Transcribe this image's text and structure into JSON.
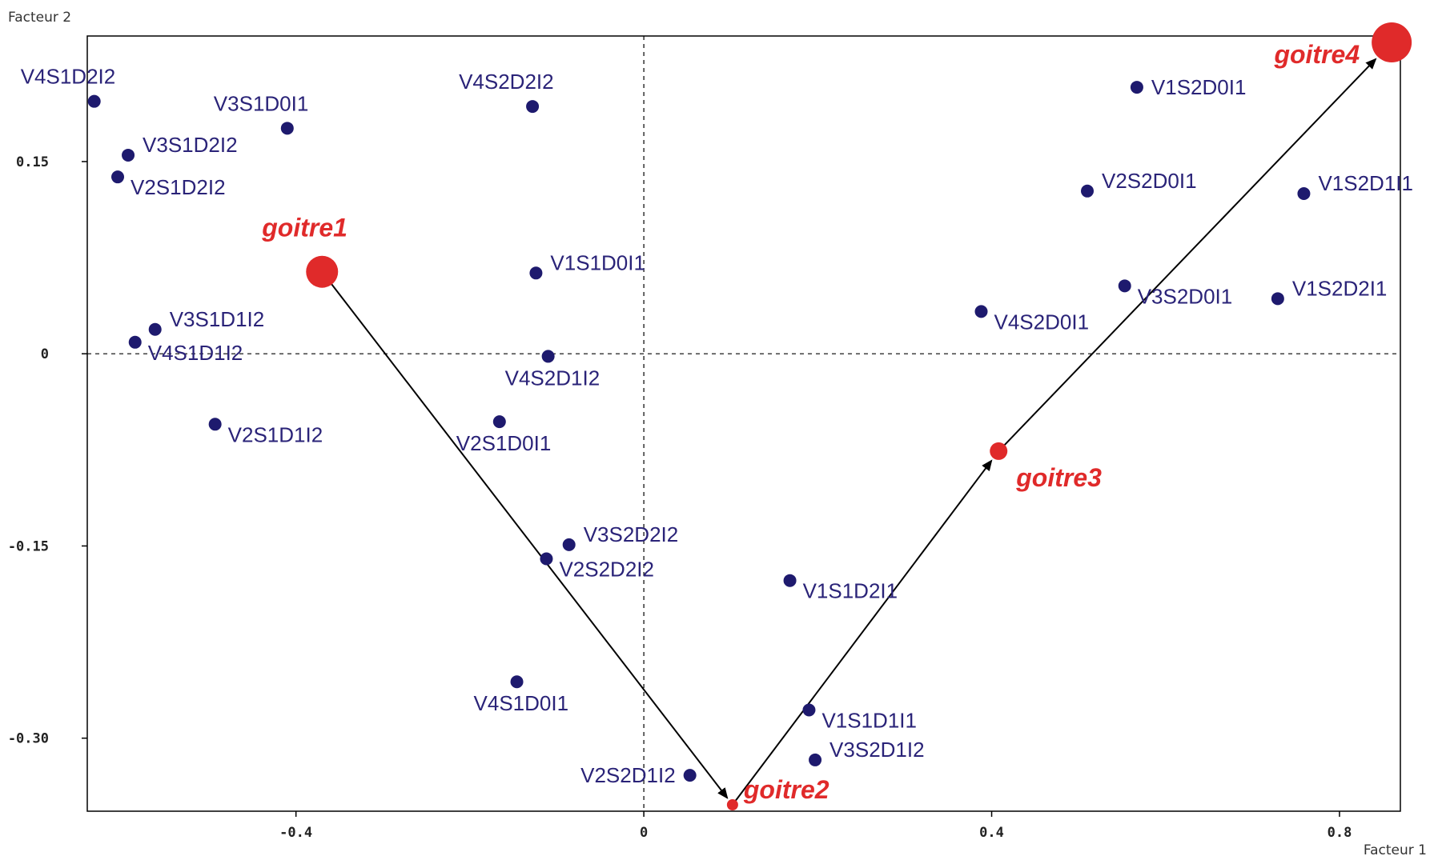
{
  "chart_data": {
    "type": "scatter",
    "xlabel": "Facteur 1",
    "ylabel": "Facteur 2",
    "xlim": [
      -0.64,
      0.87
    ],
    "ylim": [
      -0.357,
      0.248
    ],
    "xticks": [
      {
        "value": -0.4,
        "label": "-0.4"
      },
      {
        "value": 0,
        "label": "0"
      },
      {
        "value": 0.4,
        "label": "0.4"
      },
      {
        "value": 0.8,
        "label": "0.8"
      }
    ],
    "yticks": [
      {
        "value": 0.15,
        "label": "0.15"
      },
      {
        "value": 0,
        "label": "0"
      },
      {
        "value": -0.15,
        "label": "-0.15"
      },
      {
        "value": -0.3,
        "label": "-0.30"
      }
    ],
    "zero_lines": true,
    "colors": {
      "points": "#1e1a6e",
      "labels": "#2a2378",
      "supplementary": "#e02a2a",
      "arrows": "#000000"
    },
    "series": [
      {
        "points": [
          {
            "label": "V4S1D2I2",
            "x": -0.632,
            "y": 0.197,
            "anchor": "above-left"
          },
          {
            "label": "V3S1D0I1",
            "x": -0.41,
            "y": 0.176,
            "anchor": "above-left"
          },
          {
            "label": "V4S2D2I2",
            "x": -0.128,
            "y": 0.193,
            "anchor": "above-left"
          },
          {
            "label": "V3S1D2I2",
            "x": -0.593,
            "y": 0.155,
            "anchor": "right-above"
          },
          {
            "label": "V2S1D2I2",
            "x": -0.605,
            "y": 0.138,
            "anchor": "right-below"
          },
          {
            "label": "V1S1D0I1",
            "x": -0.124,
            "y": 0.063,
            "anchor": "right-above"
          },
          {
            "label": "V3S1D1I2",
            "x": -0.562,
            "y": 0.019,
            "anchor": "right-above"
          },
          {
            "label": "V4S1D1I2",
            "x": -0.585,
            "y": 0.009,
            "anchor": "right-below"
          },
          {
            "label": "V4S2D1I2",
            "x": -0.11,
            "y": -0.002,
            "anchor": "below-left"
          },
          {
            "label": "V2S1D1I2",
            "x": -0.493,
            "y": -0.055,
            "anchor": "right-below"
          },
          {
            "label": "V2S1D0I1",
            "x": -0.166,
            "y": -0.053,
            "anchor": "below-left"
          },
          {
            "label": "V3S2D2I2",
            "x": -0.086,
            "y": -0.149,
            "anchor": "right-above"
          },
          {
            "label": "V2S2D2I2",
            "x": -0.112,
            "y": -0.16,
            "anchor": "right-below"
          },
          {
            "label": "V1S1D2I1",
            "x": 0.168,
            "y": -0.177,
            "anchor": "right-below"
          },
          {
            "label": "V4S1D0I1",
            "x": -0.146,
            "y": -0.256,
            "anchor": "below-left"
          },
          {
            "label": "V1S1D1I1",
            "x": 0.19,
            "y": -0.278,
            "anchor": "right-below"
          },
          {
            "label": "V3S2D1I2",
            "x": 0.197,
            "y": -0.317,
            "anchor": "right-above"
          },
          {
            "label": "V2S2D1I2",
            "x": 0.053,
            "y": -0.329,
            "anchor": "left"
          },
          {
            "label": "V1S2D0I1",
            "x": 0.567,
            "y": 0.208,
            "anchor": "right"
          },
          {
            "label": "V2S2D0I1",
            "x": 0.51,
            "y": 0.127,
            "anchor": "right-above"
          },
          {
            "label": "V1S2D1I1",
            "x": 0.759,
            "y": 0.125,
            "anchor": "right-above"
          },
          {
            "label": "V3S2D0I1",
            "x": 0.553,
            "y": 0.053,
            "anchor": "right-below"
          },
          {
            "label": "V1S2D2I1",
            "x": 0.729,
            "y": 0.043,
            "anchor": "right-above"
          },
          {
            "label": "V4S2D0I1",
            "x": 0.388,
            "y": 0.033,
            "anchor": "right-below"
          }
        ]
      },
      {
        "points": [
          {
            "label": "goitre1",
            "x": -0.37,
            "y": 0.064,
            "r": 20,
            "anchor": "above-left"
          },
          {
            "label": "goitre2",
            "x": 0.102,
            "y": -0.352,
            "r": 7,
            "anchor": "right-above"
          },
          {
            "label": "goitre3",
            "x": 0.408,
            "y": -0.076,
            "r": 11,
            "anchor": "below-right"
          },
          {
            "label": "goitre4",
            "x": 0.86,
            "y": 0.243,
            "r": 25,
            "anchor": "left-below"
          }
        ]
      }
    ],
    "arrows": [
      {
        "from": "goitre1",
        "to": "goitre2"
      },
      {
        "from": "goitre2",
        "to": "goitre3"
      },
      {
        "from": "goitre3",
        "to": "goitre4"
      }
    ]
  }
}
